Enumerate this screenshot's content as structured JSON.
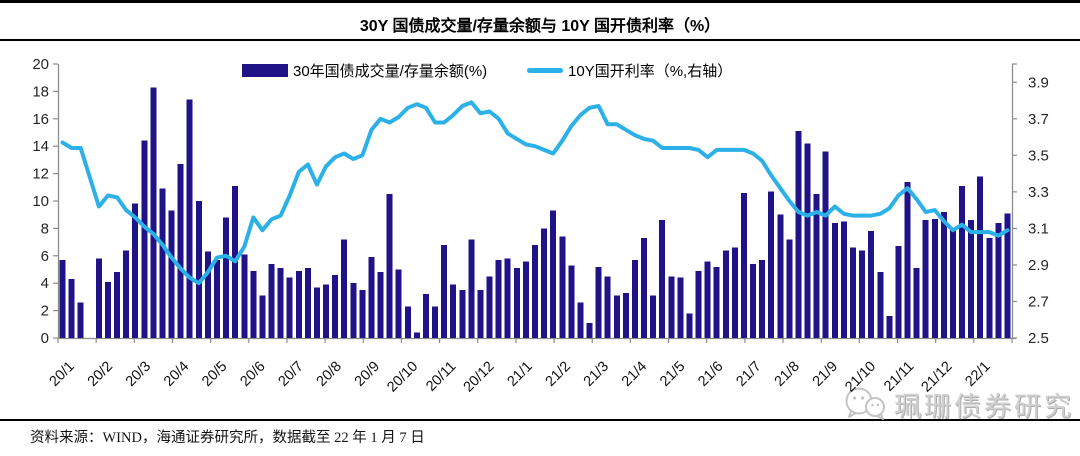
{
  "title": "30Y 国债成交量/存量余额与 10Y 国开债利率（%）",
  "footer": {
    "source_note": "资料来源：WIND，海通证券研究所，数据截至 22 年 1 月 7 日"
  },
  "watermark": {
    "label": "珮珊债券研究",
    "icon": "wechat-icon"
  },
  "chart_data": {
    "type": "bar+line",
    "title": "30Y 国债成交量/存量余额与 10Y 国开债利率（%）",
    "x_unit": "week",
    "x_tick_labels": [
      "20/1",
      "20/2",
      "20/3",
      "20/4",
      "20/5",
      "20/6",
      "20/7",
      "20/8",
      "20/9",
      "20/10",
      "20/11",
      "20/12",
      "21/1",
      "21/2",
      "21/3",
      "21/4",
      "21/5",
      "21/6",
      "21/7",
      "21/8",
      "21/9",
      "21/10",
      "21/11",
      "21/12",
      "22/1"
    ],
    "left_axis": {
      "min": 0,
      "max": 20,
      "ticks": [
        0,
        2,
        4,
        6,
        8,
        10,
        12,
        14,
        16,
        18,
        20
      ]
    },
    "right_axis": {
      "min": 2.5,
      "max": 4.0,
      "ticks": [
        2.5,
        2.7,
        2.9,
        3.1,
        3.3,
        3.5,
        3.7,
        3.9
      ]
    },
    "grid": false,
    "legend_position": "top",
    "series": [
      {
        "name": "30年国债成交量/存量余额(%)",
        "type": "bar",
        "axis": "left",
        "color": "#201287",
        "values": [
          5.7,
          4.3,
          2.6,
          0,
          5.8,
          4.1,
          4.8,
          6.4,
          9.8,
          14.4,
          18.3,
          10.9,
          9.3,
          12.7,
          17.4,
          10.0,
          6.3,
          5.7,
          8.8,
          11.1,
          6.1,
          4.9,
          3.1,
          5.4,
          5.1,
          4.4,
          4.9,
          5.1,
          3.7,
          3.9,
          4.6,
          7.2,
          4.0,
          3.5,
          5.9,
          4.8,
          10.5,
          5.0,
          2.3,
          0.4,
          3.2,
          2.3,
          6.8,
          3.9,
          3.5,
          7.2,
          3.5,
          4.5,
          5.7,
          5.8,
          5.1,
          5.6,
          6.8,
          8.0,
          9.3,
          7.4,
          5.3,
          2.6,
          1.1,
          5.2,
          4.5,
          3.1,
          3.3,
          5.7,
          7.3,
          3.1,
          8.6,
          4.5,
          4.4,
          1.8,
          4.9,
          5.6,
          5.2,
          6.4,
          6.6,
          10.6,
          5.4,
          5.7,
          10.7,
          9.0,
          7.2,
          15.1,
          14.2,
          10.5,
          13.6,
          8.4,
          8.5,
          6.6,
          6.4,
          7.8,
          4.8,
          1.6,
          6.7,
          11.4,
          5.1,
          8.6,
          8.7,
          9.2,
          7.9,
          11.1,
          8.6,
          11.8,
          7.3,
          8.4,
          9.1
        ]
      },
      {
        "name": "10Y国开利率（%,右轴）",
        "type": "line",
        "axis": "right",
        "color": "#2BB1E8",
        "values": [
          3.57,
          3.54,
          3.54,
          3.38,
          3.22,
          3.28,
          3.27,
          3.2,
          3.16,
          3.11,
          3.07,
          3.01,
          2.94,
          2.88,
          2.83,
          2.8,
          2.86,
          2.94,
          2.95,
          2.92,
          3.0,
          3.16,
          3.09,
          3.15,
          3.17,
          3.28,
          3.41,
          3.45,
          3.34,
          3.44,
          3.49,
          3.51,
          3.48,
          3.5,
          3.64,
          3.7,
          3.68,
          3.71,
          3.76,
          3.78,
          3.76,
          3.68,
          3.68,
          3.72,
          3.77,
          3.79,
          3.73,
          3.74,
          3.7,
          3.62,
          3.59,
          3.56,
          3.55,
          3.53,
          3.51,
          3.58,
          3.66,
          3.72,
          3.76,
          3.77,
          3.67,
          3.67,
          3.64,
          3.61,
          3.59,
          3.58,
          3.54,
          3.54,
          3.54,
          3.54,
          3.53,
          3.49,
          3.53,
          3.53,
          3.53,
          3.53,
          3.51,
          3.47,
          3.39,
          3.32,
          3.25,
          3.19,
          3.17,
          3.19,
          3.17,
          3.22,
          3.18,
          3.17,
          3.17,
          3.17,
          3.18,
          3.21,
          3.28,
          3.32,
          3.26,
          3.19,
          3.2,
          3.14,
          3.09,
          3.12,
          3.08,
          3.08,
          3.08,
          3.06,
          3.09
        ]
      }
    ]
  }
}
